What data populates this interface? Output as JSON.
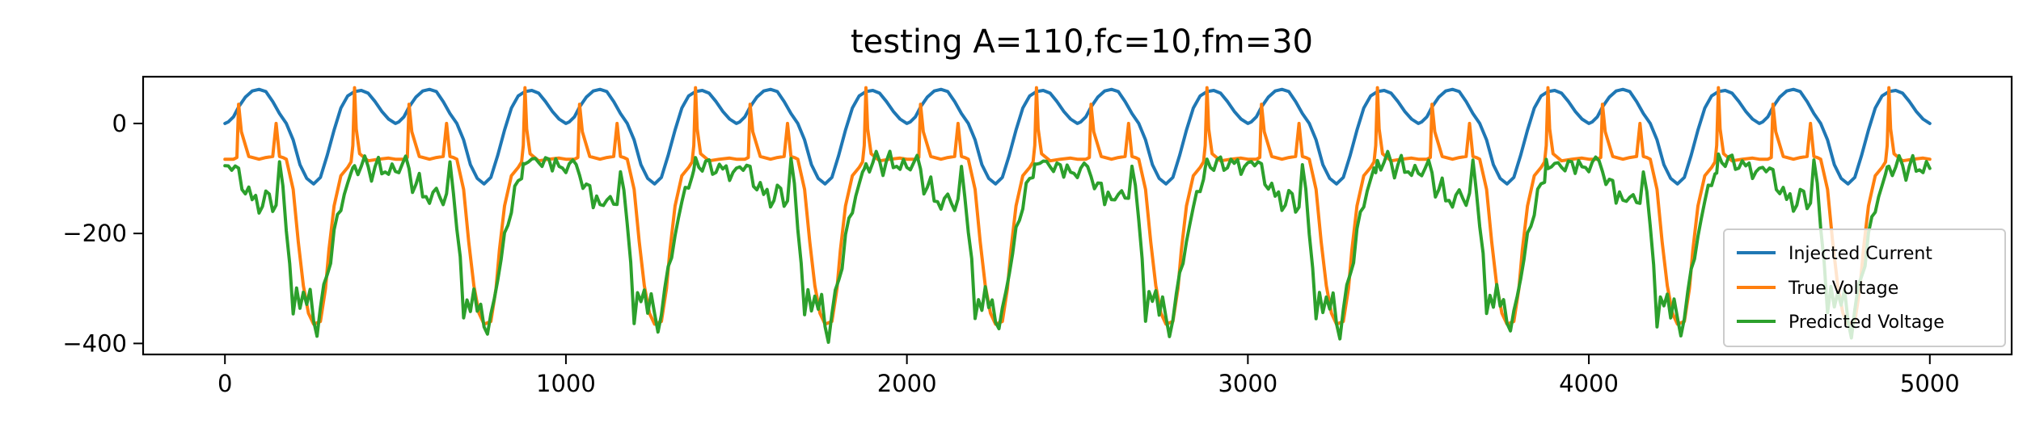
{
  "chart_data": {
    "type": "line",
    "title": "testing A=110,fc=10,fm=30",
    "xlabel": "",
    "ylabel": "",
    "xlim": [
      -240,
      5240
    ],
    "ylim": [
      -420,
      85
    ],
    "xticks": [
      0,
      1000,
      2000,
      3000,
      4000,
      5000
    ],
    "yticks": [
      0,
      -200,
      -400
    ],
    "xtick_labels": [
      "0",
      "1000",
      "2000",
      "3000",
      "4000",
      "5000"
    ],
    "ytick_labels": [
      "0",
      "−200",
      "−400"
    ],
    "grid": false,
    "legend_position": "bottom-right",
    "x_range": [
      0,
      5000
    ],
    "period": 500,
    "series": [
      {
        "name": "Injected Current",
        "color": "#1f77b4",
        "cycle_x": [
          0,
          10,
          25,
          40,
          60,
          80,
          100,
          120,
          140,
          160,
          180,
          200,
          220,
          240,
          260,
          280,
          300,
          320,
          340,
          360,
          380,
          400,
          420,
          440,
          460,
          480,
          500
        ],
        "cycle_y": [
          0,
          3,
          12,
          30,
          48,
          59,
          62,
          58,
          40,
          18,
          0,
          -30,
          -75,
          -100,
          -110,
          -98,
          -58,
          -12,
          28,
          50,
          58,
          60,
          55,
          40,
          22,
          8,
          0
        ]
      },
      {
        "name": "True Voltage",
        "color": "#ff7f0e",
        "cycle_x": [
          0,
          25,
          35,
          40,
          48,
          70,
          100,
          120,
          140,
          150,
          160,
          170,
          180,
          200,
          215,
          230,
          245,
          260,
          280,
          295,
          305,
          320,
          340,
          360,
          370,
          375,
          380,
          385,
          395,
          420,
          450,
          480,
          500
        ],
        "cycle_y": [
          -65,
          -65,
          -62,
          35,
          -15,
          -60,
          -65,
          -62,
          -60,
          0,
          -60,
          -62,
          -65,
          -120,
          -215,
          -295,
          -345,
          -365,
          -360,
          -300,
          -230,
          -150,
          -95,
          -80,
          -70,
          -40,
          65,
          -10,
          -55,
          -68,
          -65,
          -63,
          -65
        ]
      },
      {
        "name": "Predicted Voltage",
        "color": "#2ca02c",
        "cycle_x": [
          0,
          10,
          20,
          30,
          40,
          50,
          60,
          70,
          80,
          90,
          100,
          110,
          120,
          130,
          140,
          150,
          160,
          170,
          180,
          190,
          200,
          210,
          220,
          230,
          240,
          250,
          260,
          270,
          280,
          290,
          300,
          310,
          320,
          330,
          340,
          350,
          360,
          370,
          375,
          380,
          390,
          400,
          410,
          420,
          430,
          440,
          450,
          460,
          470,
          480,
          490,
          500
        ],
        "cycle_y": [
          -85,
          -80,
          -75,
          -70,
          -85,
          -120,
          -115,
          -105,
          -140,
          -130,
          -150,
          -140,
          -125,
          -130,
          -150,
          -140,
          -75,
          -120,
          -190,
          -250,
          -355,
          -310,
          -335,
          -305,
          -340,
          -315,
          -360,
          -385,
          -345,
          -305,
          -275,
          -250,
          -200,
          -175,
          -155,
          -120,
          -110,
          -95,
          -80,
          -70,
          -80,
          -75,
          -62,
          -70,
          -90,
          -75,
          -65,
          -85,
          -75,
          -90,
          -80,
          -85
        ]
      }
    ]
  }
}
